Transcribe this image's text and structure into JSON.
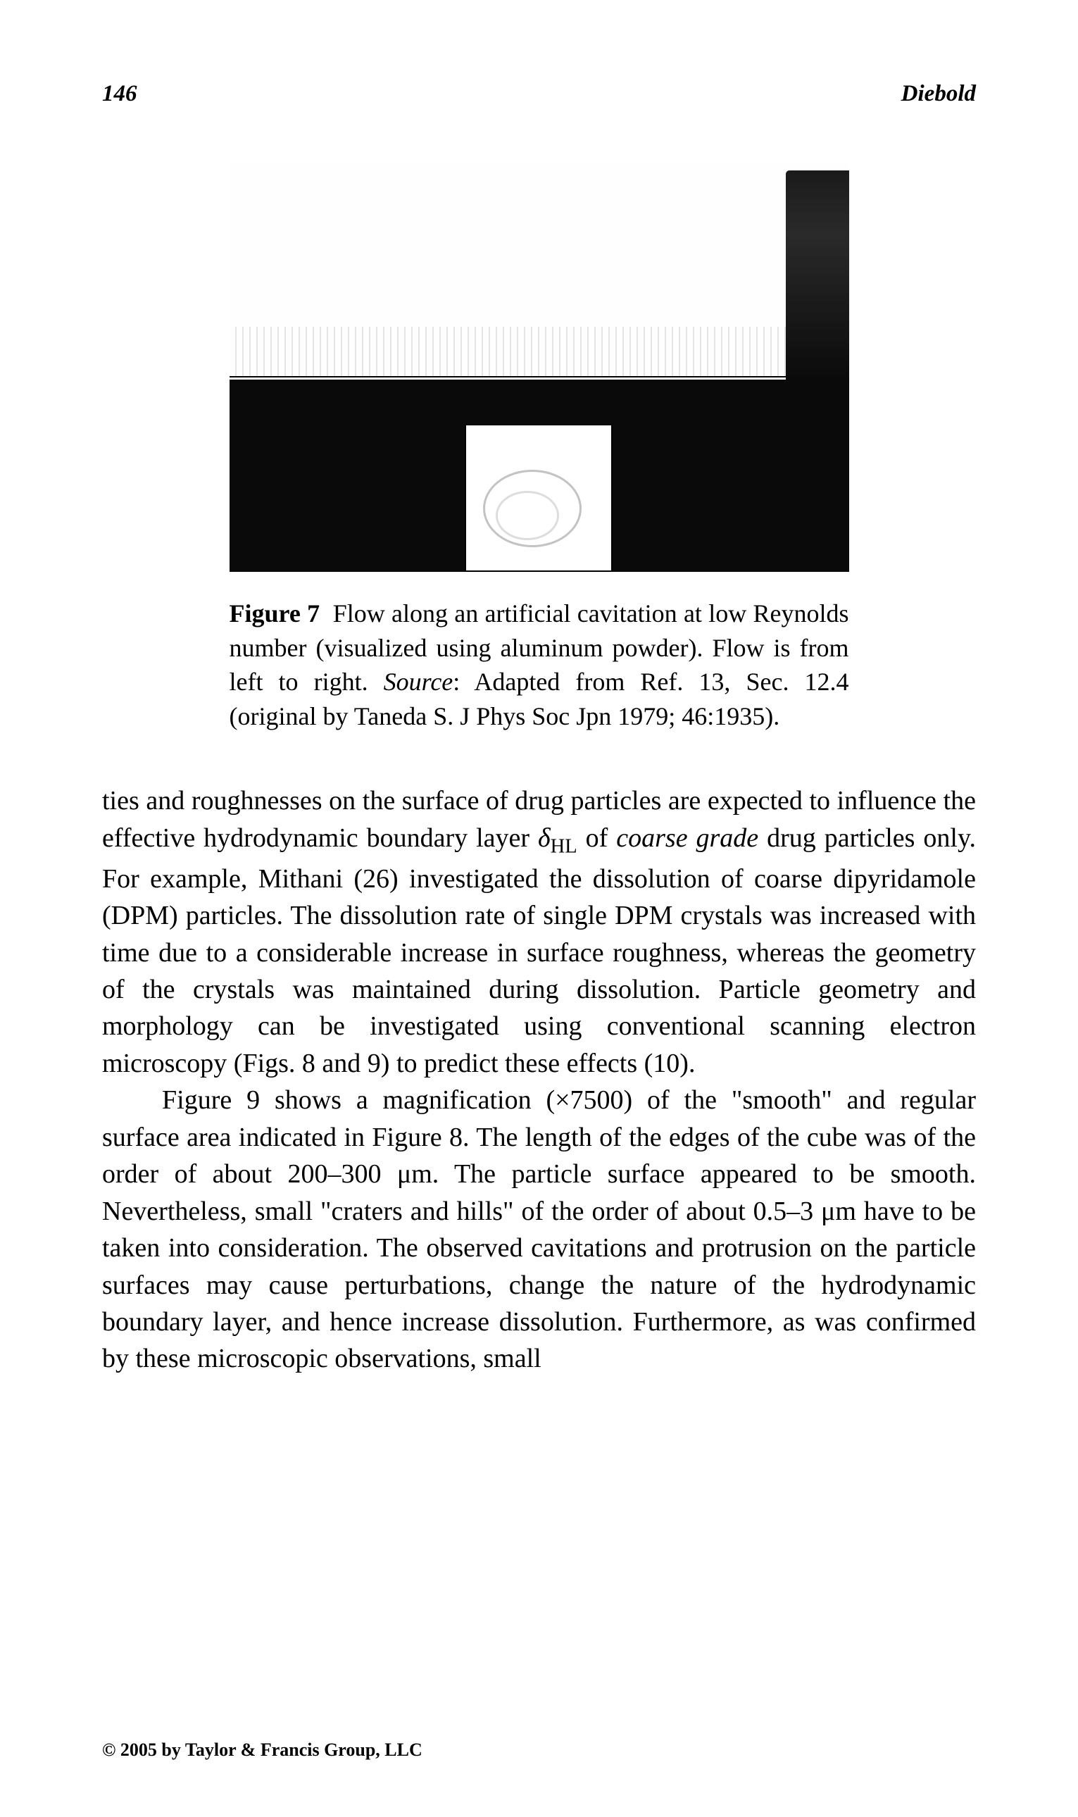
{
  "header": {
    "page_number": "146",
    "author": "Diebold"
  },
  "figure": {
    "label": "Figure 7",
    "caption_text": "Flow along an artificial cavitation at low Reynolds number (visualized using aluminum powder). Flow is from left to right.",
    "source_label": "Source",
    "source_text": ": Adapted from Ref. 13, Sec. 12.4 (original by Taneda S. J Phys Soc Jpn 1979; 46:1935).",
    "colors": {
      "background": "#ffffff",
      "dark_region": "#0a0a0a",
      "mid_gray": "#888888"
    }
  },
  "body": {
    "para1_a": "ties and roughnesses on the surface of drug particles are expected to influence the effective hydrodynamic boundary layer ",
    "para1_delta": "δ",
    "para1_sub": "HL",
    "para1_b": " of ",
    "para1_italic": "coarse grade",
    "para1_c": " drug particles only. For example, Mithani (26) investigated the dissolution of coarse dipyridamole (DPM) particles. The dissolution rate of single DPM crystals was increased with time due to a considerable increase in surface roughness, whereas the geometry of the crystals was maintained during dissolution. Particle geometry and morphology can be investigated using conventional scanning electron microscopy (Figs. 8 and 9) to predict these effects (10).",
    "para2": "Figure 9 shows a magnification (×7500) of the \"smooth\" and regular surface area indicated in Figure 8. The length of the edges of the cube was of the order of about 200–300 μm. The particle surface appeared to be smooth. Nevertheless, small \"craters and hills\" of the order of about 0.5–3 μm have to be taken into consideration. The observed cavitations and protrusion on the particle surfaces may cause perturbations, change the nature of the hydrodynamic boundary layer, and hence increase dissolution. Furthermore, as was confirmed by these microscopic observations, small"
  },
  "footer": {
    "copyright": "© 2005 by Taylor & Francis Group, LLC"
  },
  "typography": {
    "header_fontsize": 33,
    "caption_fontsize": 36,
    "body_fontsize": 38,
    "footer_fontsize": 26,
    "line_height_body": 1.38,
    "line_height_caption": 1.35,
    "font_family": "Times New Roman"
  }
}
